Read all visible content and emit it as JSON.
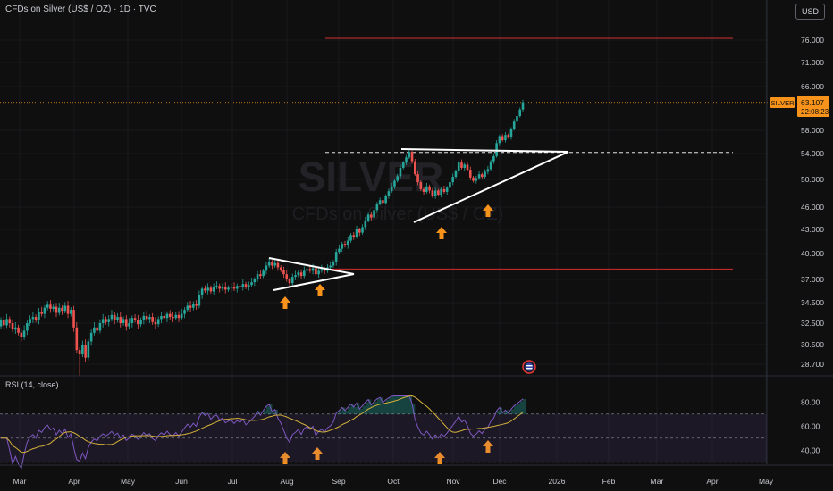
{
  "header": {
    "title": "CFDs on Silver (US$ / OZ) · 1D · TVC",
    "currency": "USD"
  },
  "price_badge": {
    "symbol": "SILVER",
    "price": "63.107",
    "countdown": "22:08:23"
  },
  "watermark": {
    "line1": "SILVER",
    "line2": "CFDs on Silver (US$ / OZ)"
  },
  "rsi": {
    "label": "RSI (14, close)",
    "ticks": [
      "80.00",
      "60.00",
      "40.00"
    ]
  },
  "colors": {
    "up": "#26a69a",
    "down": "#ef5350",
    "rsi_line": "#7e57c2",
    "rsi_ma": "#d4b23a",
    "arrows": "#f7931a",
    "resistance": "#d32f2f"
  },
  "chart_data": {
    "type": "candlestick",
    "price_ticks": [
      "76.000",
      "71.000",
      "66.000",
      "58.000",
      "54.000",
      "50.000",
      "46.000",
      "43.000",
      "40.000",
      "37.000",
      "34.500",
      "32.500",
      "30.500",
      "28.700"
    ],
    "x_ticks": [
      "Mar",
      "Apr",
      "May",
      "Jun",
      "Jul",
      "Aug",
      "Sep",
      "Oct",
      "Nov",
      "Dec",
      "2026",
      "Feb",
      "Mar",
      "Apr",
      "May"
    ],
    "x_start": "2025-02-20",
    "candles": [
      [
        32.2,
        32.8
      ],
      [
        32.8,
        32.3
      ],
      [
        32.3,
        32.9
      ],
      [
        32.9,
        32.5
      ],
      [
        32.5,
        31.9
      ],
      [
        31.9,
        32.1
      ],
      [
        32.1,
        31.6
      ],
      [
        31.6,
        31.2
      ],
      [
        31.2,
        31.8
      ],
      [
        31.8,
        32.5
      ],
      [
        32.5,
        32.9
      ],
      [
        32.9,
        33.1
      ],
      [
        33.1,
        32.8
      ],
      [
        32.8,
        33.6
      ],
      [
        33.6,
        33.4
      ],
      [
        33.4,
        34.0
      ],
      [
        34.0,
        34.3
      ],
      [
        34.3,
        33.9
      ],
      [
        33.9,
        34.1
      ],
      [
        34.1,
        33.5
      ],
      [
        33.5,
        34.0
      ],
      [
        34.0,
        33.7
      ],
      [
        33.7,
        34.2
      ],
      [
        34.2,
        33.4
      ],
      [
        33.4,
        33.8
      ],
      [
        33.8,
        32.1
      ],
      [
        32.1,
        30.0
      ],
      [
        30.0,
        29.6
      ],
      [
        29.6,
        30.5
      ],
      [
        30.5,
        29.3
      ],
      [
        29.3,
        30.8
      ],
      [
        30.8,
        31.6
      ],
      [
        31.6,
        32.1
      ],
      [
        32.1,
        31.8
      ],
      [
        31.8,
        32.5
      ],
      [
        32.5,
        32.9
      ],
      [
        32.9,
        32.6
      ],
      [
        32.6,
        32.9
      ],
      [
        32.9,
        33.3
      ],
      [
        33.3,
        32.8
      ],
      [
        32.8,
        33.1
      ],
      [
        33.1,
        32.5
      ],
      [
        32.5,
        32.9
      ],
      [
        32.9,
        32.2
      ],
      [
        32.2,
        32.5
      ],
      [
        32.5,
        33.0
      ],
      [
        33.0,
        32.8
      ],
      [
        32.8,
        32.4
      ],
      [
        32.4,
        32.8
      ],
      [
        32.8,
        33.2
      ],
      [
        33.2,
        32.9
      ],
      [
        32.9,
        33.1
      ],
      [
        33.1,
        32.6
      ],
      [
        32.6,
        32.4
      ],
      [
        32.4,
        32.9
      ],
      [
        32.9,
        33.2
      ],
      [
        33.2,
        33.0
      ],
      [
        33.0,
        33.4
      ],
      [
        33.4,
        33.1
      ],
      [
        33.1,
        33.0
      ],
      [
        33.0,
        33.3
      ],
      [
        33.3,
        33.0
      ],
      [
        33.0,
        33.4
      ],
      [
        33.4,
        33.8
      ],
      [
        33.8,
        34.2
      ],
      [
        34.2,
        34.0
      ],
      [
        34.0,
        34.4
      ],
      [
        34.4,
        34.2
      ],
      [
        34.2,
        35.3
      ],
      [
        35.3,
        36.0
      ],
      [
        36.0,
        35.8
      ],
      [
        35.8,
        36.1
      ],
      [
        36.1,
        35.7
      ],
      [
        35.7,
        36.2
      ],
      [
        36.2,
        36.3
      ],
      [
        36.3,
        36.0
      ],
      [
        36.0,
        36.2
      ],
      [
        36.2,
        35.9
      ],
      [
        35.9,
        36.1
      ],
      [
        36.1,
        36.2
      ],
      [
        36.2,
        36.0
      ],
      [
        36.0,
        36.3
      ],
      [
        36.3,
        36.2
      ],
      [
        36.2,
        36.5
      ],
      [
        36.5,
        36.2
      ],
      [
        36.2,
        36.4
      ],
      [
        36.4,
        36.7
      ],
      [
        36.7,
        37.0
      ],
      [
        37.0,
        37.6
      ],
      [
        37.6,
        37.4
      ],
      [
        37.4,
        38.0
      ],
      [
        38.0,
        38.6
      ],
      [
        38.6,
        39.0
      ],
      [
        39.0,
        38.6
      ],
      [
        38.6,
        38.9
      ],
      [
        38.9,
        38.4
      ],
      [
        38.4,
        38.1
      ],
      [
        38.1,
        37.6
      ],
      [
        37.6,
        37.0
      ],
      [
        37.0,
        36.6
      ],
      [
        36.6,
        37.3
      ],
      [
        37.3,
        37.5
      ],
      [
        37.5,
        37.8
      ],
      [
        37.8,
        37.4
      ],
      [
        37.4,
        38.0
      ],
      [
        38.0,
        38.2
      ],
      [
        38.2,
        38.0
      ],
      [
        38.0,
        38.3
      ],
      [
        38.3,
        37.6
      ],
      [
        37.6,
        38.0
      ],
      [
        38.0,
        38.2
      ],
      [
        38.2,
        38.0
      ],
      [
        38.0,
        38.4
      ],
      [
        38.4,
        38.6
      ],
      [
        38.6,
        39.0
      ],
      [
        39.0,
        40.2
      ],
      [
        40.2,
        40.6
      ],
      [
        40.6,
        41.2
      ],
      [
        41.2,
        41.0
      ],
      [
        41.0,
        41.6
      ],
      [
        41.6,
        42.3
      ],
      [
        42.3,
        42.1
      ],
      [
        42.1,
        43.0
      ],
      [
        43.0,
        42.6
      ],
      [
        42.6,
        43.3
      ],
      [
        43.3,
        44.2
      ],
      [
        44.2,
        45.0
      ],
      [
        45.0,
        44.6
      ],
      [
        44.6,
        45.6
      ],
      [
        45.6,
        46.5
      ],
      [
        46.5,
        47.0
      ],
      [
        47.0,
        46.6
      ],
      [
        46.6,
        47.6
      ],
      [
        47.6,
        48.3
      ],
      [
        48.3,
        49.0
      ],
      [
        49.0,
        49.8
      ],
      [
        49.8,
        50.5
      ],
      [
        50.5,
        51.8
      ],
      [
        51.8,
        52.6
      ],
      [
        52.6,
        53.4
      ],
      [
        53.4,
        54.3
      ],
      [
        54.3,
        52.8
      ],
      [
        52.8,
        50.8
      ],
      [
        50.8,
        49.6
      ],
      [
        49.6,
        48.6
      ],
      [
        48.6,
        48.2
      ],
      [
        48.2,
        49.0
      ],
      [
        49.0,
        48.4
      ],
      [
        48.4,
        47.6
      ],
      [
        47.6,
        48.4
      ],
      [
        48.4,
        47.8
      ],
      [
        47.8,
        48.6
      ],
      [
        48.6,
        48.2
      ],
      [
        48.2,
        48.8
      ],
      [
        48.8,
        49.6
      ],
      [
        49.6,
        50.4
      ],
      [
        50.4,
        51.3
      ],
      [
        51.3,
        52.6
      ],
      [
        52.6,
        51.8
      ],
      [
        51.8,
        52.3
      ],
      [
        52.3,
        51.5
      ],
      [
        51.5,
        50.3
      ],
      [
        50.3,
        49.8
      ],
      [
        49.8,
        50.2
      ],
      [
        50.2,
        50.8
      ],
      [
        50.8,
        50.4
      ],
      [
        50.4,
        51.2
      ],
      [
        51.2,
        51.6
      ],
      [
        51.6,
        52.8
      ],
      [
        52.8,
        53.6
      ],
      [
        53.6,
        55.8
      ],
      [
        55.8,
        57.0
      ],
      [
        57.0,
        56.3
      ],
      [
        56.3,
        57.2
      ],
      [
        57.2,
        56.8
      ],
      [
        56.8,
        58.2
      ],
      [
        58.2,
        59.6
      ],
      [
        59.6,
        60.6
      ],
      [
        60.6,
        61.8
      ],
      [
        61.8,
        63.107
      ]
    ],
    "resistance_high": 76.4,
    "breakout_level": 38.2,
    "dotted_level": 54.2
  }
}
